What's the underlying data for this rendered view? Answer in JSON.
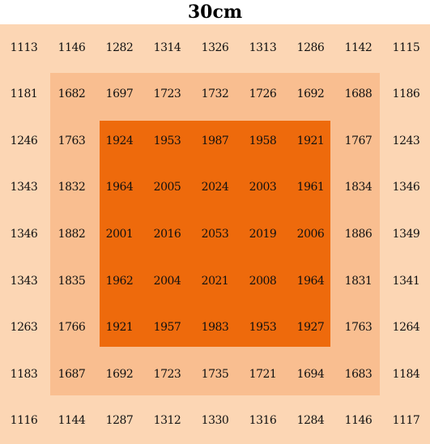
{
  "title": "30cm",
  "colors": {
    "outer": "#fcd6b4",
    "middle": "#f9be90",
    "inner": "#ee6a0c"
  },
  "grid": [
    [
      1113,
      1146,
      1282,
      1314,
      1326,
      1313,
      1286,
      1142,
      1115
    ],
    [
      1181,
      1682,
      1697,
      1723,
      1732,
      1726,
      1692,
      1688,
      1186
    ],
    [
      1246,
      1763,
      1924,
      1953,
      1987,
      1958,
      1921,
      1767,
      1243
    ],
    [
      1343,
      1832,
      1964,
      2005,
      2024,
      2003,
      1961,
      1834,
      1346
    ],
    [
      1346,
      1882,
      2001,
      2016,
      2053,
      2019,
      2006,
      1886,
      1349
    ],
    [
      1343,
      1835,
      1962,
      2004,
      2021,
      2008,
      1964,
      1831,
      1341
    ],
    [
      1263,
      1766,
      1921,
      1957,
      1983,
      1953,
      1927,
      1763,
      1264
    ],
    [
      1183,
      1687,
      1692,
      1723,
      1735,
      1721,
      1694,
      1683,
      1184
    ],
    [
      1116,
      1144,
      1287,
      1312,
      1330,
      1316,
      1284,
      1146,
      1117
    ]
  ]
}
